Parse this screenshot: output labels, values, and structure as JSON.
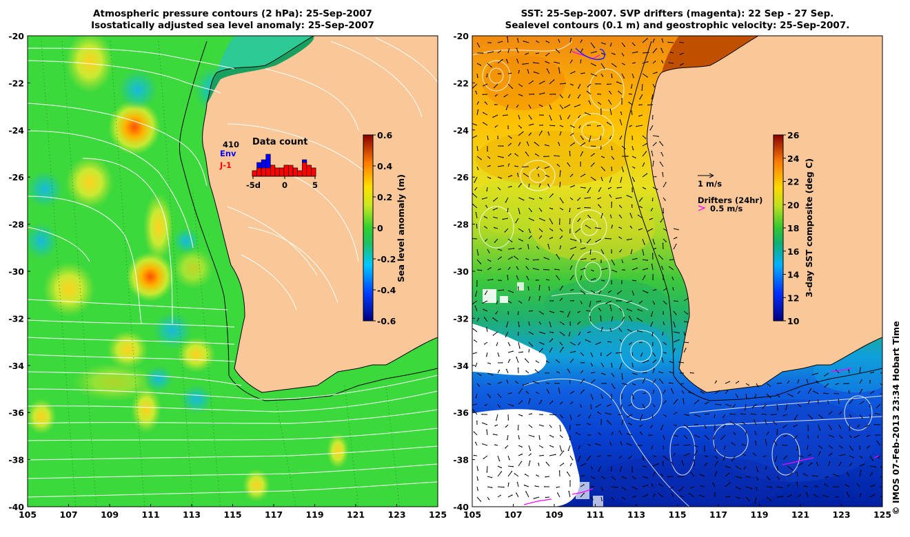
{
  "left_panel": {
    "title_line1": "Atmospheric pressure contours (2 hPa): 25-Sep-2007",
    "title_line2": "Isostatically adjusted sea level anomaly: 25-Sep-2007",
    "colorbar": {
      "label": "Sea level anomaly (m)",
      "ticks": [
        "0.6",
        "0.4",
        "0.2",
        "0",
        "-0.2",
        "-0.4",
        "-0.6"
      ]
    },
    "inset": {
      "title": "Data count",
      "total": "410",
      "series1": "Env",
      "series2": "J-1",
      "xticks": [
        "-5d",
        "0",
        "5"
      ],
      "env_counts": [
        2,
        5,
        6,
        8,
        4,
        3,
        3,
        4,
        2,
        3,
        2,
        6,
        4,
        3
      ],
      "j1_counts": [
        2,
        3,
        3,
        3,
        4,
        3,
        3,
        4,
        4,
        3,
        2,
        5,
        4,
        3
      ],
      "colors": {
        "env": "#0000ff",
        "j1": "#ff0000"
      }
    }
  },
  "right_panel": {
    "title_line1": "SST: 25-Sep-2007. SVP drifters (magenta): 22 Sep - 27 Sep.",
    "title_line2": "Sealevel contours (0.1 m) and geostrophic velocity: 25-Sep-2007.",
    "colorbar": {
      "label": "3-day SST composite (deg C)",
      "ticks": [
        "26",
        "24",
        "22",
        "20",
        "18",
        "16",
        "14",
        "12",
        "10"
      ]
    },
    "legend": {
      "velocity": "1 m/s",
      "drifters_title": "Drifters (24hr)",
      "drifters_speed": "0.5 m/s",
      "drifter_color": "#ff00ff"
    }
  },
  "axes": {
    "y_ticks": [
      "-20",
      "-22",
      "-24",
      "-26",
      "-28",
      "-30",
      "-32",
      "-34",
      "-36",
      "-38",
      "-40"
    ],
    "x_ticks": [
      "105",
      "107",
      "109",
      "111",
      "113",
      "115",
      "117",
      "119",
      "121",
      "123",
      "125"
    ]
  },
  "credit": "© IMOS 07-Feb-2013 23:34 Hobart Time",
  "colors": {
    "land": "#fac898",
    "ocean_green": "#3ddc3d",
    "frame": "#000000"
  }
}
